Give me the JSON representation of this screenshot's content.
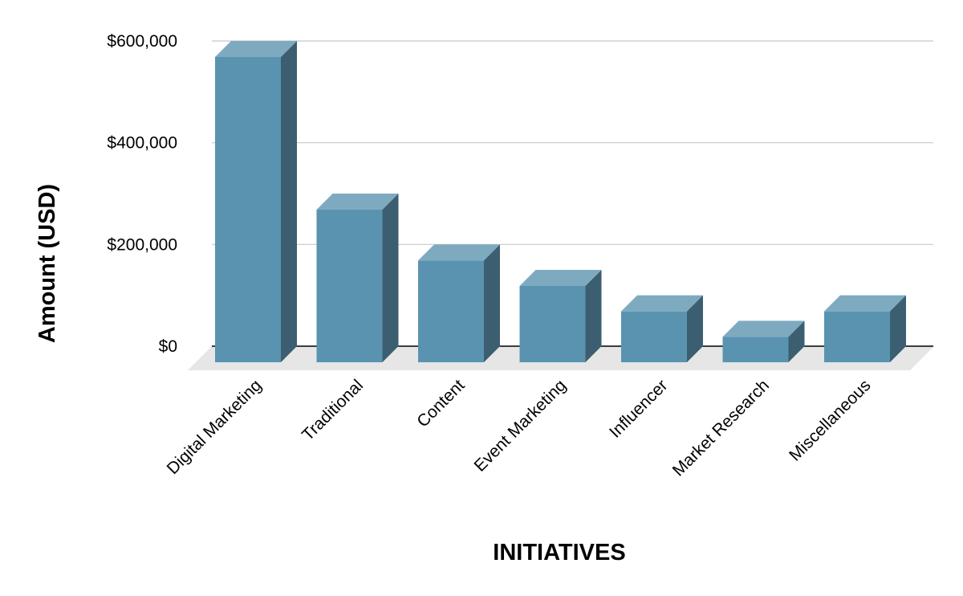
{
  "chart_data": {
    "type": "bar",
    "style": "3d-column",
    "title": "",
    "xlabel": "INITIATIVES",
    "ylabel": "Amount (USD)",
    "categories": [
      "Digital Marketing",
      "Traditional",
      "Content",
      "Event Marketing",
      "Influencer",
      "Market Research",
      "Miscellaneous"
    ],
    "values": [
      600000,
      300000,
      200000,
      150000,
      100000,
      50000,
      100000
    ],
    "ylim": [
      0,
      600000
    ],
    "yticks": [
      0,
      200000,
      400000,
      600000
    ],
    "ytick_labels": [
      "$0",
      "$200,000",
      "$400,000",
      "$600,000"
    ],
    "grid": true,
    "legend": "none"
  },
  "colors": {
    "bar_front": "#5a93b0",
    "bar_top": "#7eaac0",
    "bar_side": "#3b5f70",
    "floor": "#e6e6e6",
    "grid": "#c8c8c8",
    "baseline": "#000000"
  }
}
